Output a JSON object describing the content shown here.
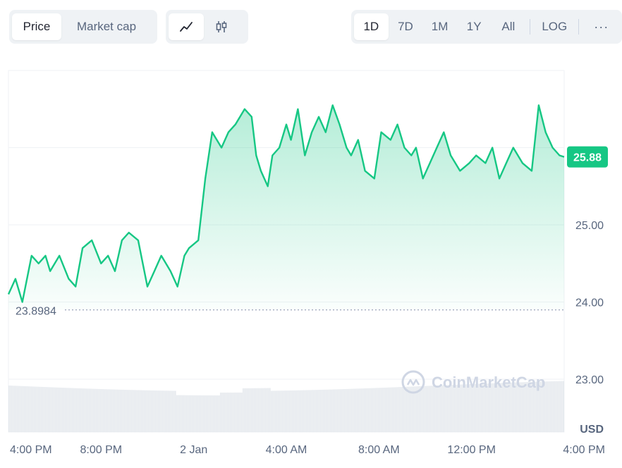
{
  "toolbar": {
    "metric_tabs": [
      {
        "label": "Price",
        "active": true
      },
      {
        "label": "Market cap",
        "active": false
      }
    ],
    "chart_type_tabs": [
      {
        "icon": "line-chart-icon",
        "active": true
      },
      {
        "icon": "candlestick-icon",
        "active": false
      }
    ],
    "range_tabs": [
      {
        "label": "1D",
        "active": true
      },
      {
        "label": "7D",
        "active": false
      },
      {
        "label": "1M",
        "active": false
      },
      {
        "label": "1Y",
        "active": false
      },
      {
        "label": "All",
        "active": false
      }
    ],
    "log_label": "LOG",
    "more_label": "···"
  },
  "watermark": "CoinMarketCap",
  "colors": {
    "line": "#16c784",
    "badge": "#16c784",
    "grid": "#eff2f5",
    "text": "#58667e"
  },
  "chart_data": {
    "type": "area",
    "ylabel": "USD",
    "y_ticks": [
      "23.00",
      "24.00",
      "25.00"
    ],
    "y_tick_values": [
      23.0,
      24.0,
      25.0
    ],
    "ylim": [
      22.2,
      26.0
    ],
    "x_tick_labels": [
      "4:00 PM",
      "8:00 PM",
      "2 Jan",
      "4:00 AM",
      "8:00 AM",
      "12:00 PM",
      "4:00 PM"
    ],
    "x_tick_hours": [
      0,
      4,
      8,
      12,
      16,
      20,
      24
    ],
    "open_price": 23.8984,
    "open_price_label": "23.8984",
    "current_price": 25.88,
    "current_price_label": "25.88",
    "series": [
      {
        "x_hours": [
          0,
          0.3,
          0.6,
          1.0,
          1.3,
          1.6,
          1.8,
          2.2,
          2.6,
          2.9,
          3.2,
          3.6,
          4.0,
          4.3,
          4.6,
          4.9,
          5.2,
          5.6,
          6.0,
          6.3,
          6.6,
          7.0,
          7.3,
          7.6,
          7.8,
          8.2,
          8.5,
          8.8,
          9.2,
          9.5,
          9.8,
          10.2,
          10.5,
          10.7,
          10.9,
          11.2,
          11.4,
          11.7,
          12.0,
          12.2,
          12.5,
          12.8,
          13.1,
          13.4,
          13.7,
          14.0,
          14.3,
          14.6,
          14.8,
          15.1,
          15.4,
          15.8,
          16.1,
          16.5,
          16.8,
          17.1,
          17.4,
          17.6,
          17.9,
          18.2,
          18.5,
          18.8,
          19.1,
          19.5,
          19.9,
          20.2,
          20.6,
          20.9,
          21.2,
          21.5,
          21.8,
          22.2,
          22.6,
          22.9,
          23.2,
          23.5,
          23.8,
          24.0
        ],
        "values": [
          24.1,
          24.3,
          24.0,
          24.6,
          24.5,
          24.6,
          24.4,
          24.6,
          24.3,
          24.2,
          24.7,
          24.8,
          24.5,
          24.6,
          24.4,
          24.8,
          24.9,
          24.8,
          24.2,
          24.4,
          24.6,
          24.4,
          24.2,
          24.6,
          24.7,
          24.8,
          25.6,
          26.2,
          26.0,
          26.2,
          26.3,
          26.5,
          26.4,
          25.9,
          25.7,
          25.5,
          25.9,
          26.0,
          26.3,
          26.1,
          26.5,
          25.9,
          26.2,
          26.4,
          26.2,
          26.6,
          26.3,
          26.0,
          25.9,
          26.1,
          25.7,
          25.6,
          26.2,
          26.1,
          26.3,
          26.0,
          25.9,
          26.0,
          25.6,
          25.8,
          26.0,
          26.2,
          25.9,
          25.7,
          25.8,
          25.9,
          25.8,
          26.0,
          25.6,
          25.8,
          26.0,
          25.8,
          25.7,
          26.6,
          26.2,
          26.0,
          25.9,
          25.88
        ]
      }
    ],
    "grid": true
  }
}
